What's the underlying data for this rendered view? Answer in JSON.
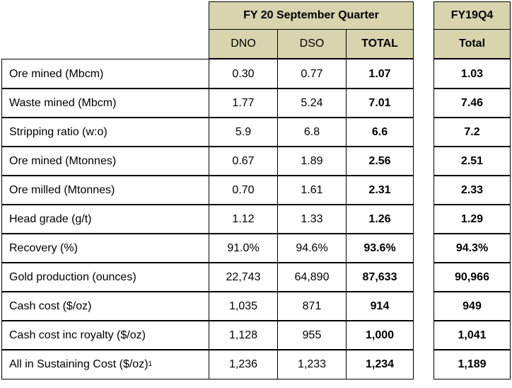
{
  "header": {
    "group_title": "FY 20 September Quarter",
    "prior_title": "FY19Q4",
    "columns": [
      "DNO",
      "DSO",
      "TOTAL"
    ],
    "prior_column": "Total"
  },
  "rows": [
    {
      "label": "Ore mined (Mbcm)",
      "sup": "",
      "dno": "0.30",
      "dso": "0.77",
      "total": "1.07",
      "prior": "1.03"
    },
    {
      "label": "Waste mined (Mbcm)",
      "sup": "",
      "dno": "1.77",
      "dso": "5.24",
      "total": "7.01",
      "prior": "7.46"
    },
    {
      "label": "Stripping ratio (w:o)",
      "sup": "",
      "dno": "5.9",
      "dso": "6.8",
      "total": "6.6",
      "prior": "7.2"
    },
    {
      "label": "Ore mined (Mtonnes)",
      "sup": "",
      "dno": "0.67",
      "dso": "1.89",
      "total": "2.56",
      "prior": "2.51"
    },
    {
      "label": "Ore milled (Mtonnes)",
      "sup": "",
      "dno": "0.70",
      "dso": "1.61",
      "total": "2.31",
      "prior": "2.33"
    },
    {
      "label": "Head grade (g/t)",
      "sup": "",
      "dno": "1.12",
      "dso": "1.33",
      "total": "1.26",
      "prior": "1.29"
    },
    {
      "label": "Recovery (%)",
      "sup": "",
      "dno": "91.0%",
      "dso": "94.6%",
      "total": "93.6%",
      "prior": "94.3%"
    },
    {
      "label": "Gold production (ounces)",
      "sup": "",
      "dno": "22,743",
      "dso": "64,890",
      "total": "87,633",
      "prior": "90,966"
    },
    {
      "label": "Cash cost ($/oz)",
      "sup": "",
      "dno": "1,035",
      "dso": "871",
      "total": "914",
      "prior": "949"
    },
    {
      "label": "Cash cost inc royalty ($/oz)",
      "sup": "",
      "dno": "1,128",
      "dso": "955",
      "total": "1,000",
      "prior": "1,041"
    },
    {
      "label": "All in Sustaining Cost ($/oz)",
      "sup": "1",
      "dno": "1,236",
      "dso": "1,233",
      "total": "1,234",
      "prior": "1,189"
    }
  ],
  "colors": {
    "header_bg": "#d9d4ae",
    "border": "#000000"
  }
}
